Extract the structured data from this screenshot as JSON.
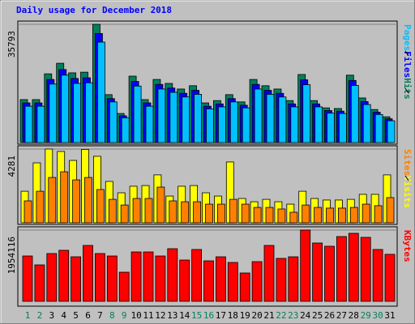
{
  "title": "Daily usage for December 2018",
  "chart_data": [
    {
      "type": "grouped-bar",
      "ylim": [
        0,
        35793
      ],
      "yticks": [
        35793
      ],
      "grid": true,
      "series": [
        {
          "name": "Hits",
          "color": "#00805c",
          "values": [
            13000,
            13000,
            20800,
            24000,
            21100,
            21300,
            35793,
            14500,
            8800,
            20100,
            13000,
            19100,
            17900,
            16200,
            17200,
            12000,
            12700,
            14500,
            12300,
            19100,
            17200,
            16200,
            12700,
            20600,
            12700,
            10500,
            10300,
            20400,
            13500,
            10000,
            7800
          ]
        },
        {
          "name": "Files",
          "color": "#0000ff",
          "values": [
            12000,
            12000,
            19100,
            22100,
            19400,
            19600,
            33000,
            13300,
            8100,
            18500,
            12000,
            17600,
            16500,
            14900,
            15800,
            11000,
            11700,
            13300,
            11300,
            17600,
            15800,
            14900,
            11700,
            19000,
            11700,
            9700,
            9500,
            18800,
            12400,
            9200,
            7200
          ]
        },
        {
          "name": "Pages",
          "color": "#00c0ff",
          "values": [
            11000,
            11000,
            17700,
            20400,
            17900,
            18100,
            30400,
            12300,
            7500,
            17100,
            11000,
            16200,
            15200,
            13800,
            14600,
            10200,
            10800,
            12300,
            10500,
            16200,
            14600,
            13800,
            10800,
            17500,
            10800,
            8900,
            8800,
            17300,
            11500,
            8500,
            6600
          ]
        }
      ]
    },
    {
      "type": "grouped-bar",
      "ylim": [
        0,
        4281
      ],
      "yticks": [
        4281
      ],
      "grid": true,
      "series": [
        {
          "name": "Visits",
          "color": "#ffff00",
          "values": [
            1830,
            3480,
            4281,
            4140,
            3620,
            4260,
            3860,
            2400,
            1740,
            2120,
            2160,
            2780,
            1550,
            2120,
            2160,
            1740,
            1550,
            3530,
            1410,
            1220,
            1360,
            1220,
            1080,
            1830,
            1410,
            1320,
            1320,
            1360,
            1650,
            1650,
            2780
          ]
        },
        {
          "name": "Sites",
          "color": "#ff8000",
          "values": [
            1270,
            1830,
            2630,
            2960,
            2490,
            2630,
            1930,
            1360,
            1030,
            1410,
            1410,
            2070,
            1270,
            1220,
            1220,
            1080,
            1080,
            1360,
            1080,
            890,
            890,
            800,
            610,
            1030,
            890,
            850,
            850,
            890,
            1080,
            990,
            1460
          ]
        }
      ]
    },
    {
      "type": "grouped-bar",
      "ylim": [
        0,
        1954116
      ],
      "yticks": [
        1954116
      ],
      "grid": true,
      "categories": [
        "1",
        "2",
        "3",
        "4",
        "5",
        "6",
        "7",
        "8",
        "9",
        "10",
        "11",
        "12",
        "13",
        "14",
        "15",
        "16",
        "17",
        "18",
        "19",
        "20",
        "21",
        "22",
        "23",
        "24",
        "25",
        "26",
        "27",
        "28",
        "29",
        "30",
        "31"
      ],
      "category_colors": [
        "#00805c",
        "#00805c",
        "#000000",
        "#000000",
        "#000000",
        "#000000",
        "#000000",
        "#00805c",
        "#00805c",
        "#000000",
        "#000000",
        "#000000",
        "#000000",
        "#000000",
        "#00805c",
        "#00805c",
        "#000000",
        "#000000",
        "#000000",
        "#000000",
        "#000000",
        "#00805c",
        "#00805c",
        "#000000",
        "#000000",
        "#000000",
        "#000000",
        "#000000",
        "#00805c",
        "#00805c",
        "#000000"
      ],
      "series": [
        {
          "name": "KBytes",
          "color": "#ff0000",
          "values": [
            1243500,
            999000,
            1310000,
            1399000,
            1221000,
            1532000,
            1310000,
            1243000,
            799000,
            1354000,
            1354000,
            1243000,
            1443000,
            1132000,
            1421000,
            1110000,
            1221000,
            1066000,
            777000,
            1088000,
            1532000,
            1177000,
            1221000,
            1954116,
            1599000,
            1510000,
            1776000,
            1865000,
            1754000,
            1421000,
            1288000
          ]
        }
      ]
    }
  ]
}
